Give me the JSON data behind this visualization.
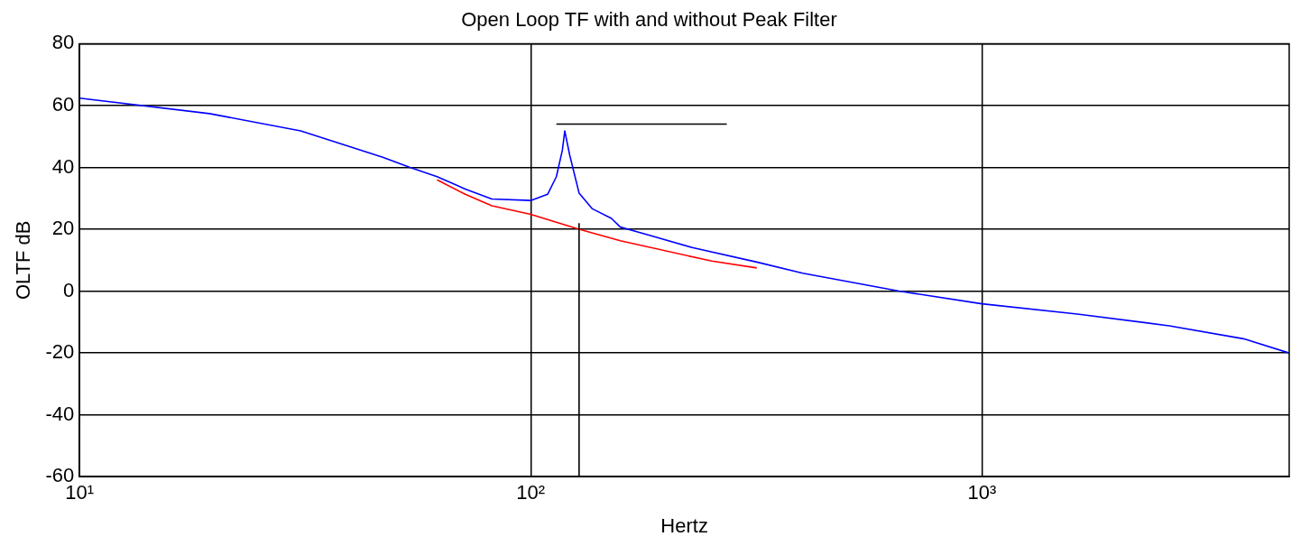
{
  "chart_data": {
    "type": "line",
    "title": "Open Loop TF with and without Peak Filter",
    "xlabel": "Hertz",
    "ylabel": "OLTF dB",
    "log": "x",
    "grid": true,
    "legend": false,
    "xlim": [
      10,
      4800
    ],
    "xticks": [
      {
        "value": 10,
        "label": "10¹"
      },
      {
        "value": 100,
        "label": "10²"
      },
      {
        "value": 1000,
        "label": "10³"
      }
    ],
    "ylim": [
      -60,
      80
    ],
    "yticks": [
      -60,
      -40,
      -20,
      0,
      20,
      40,
      60,
      80
    ],
    "series": [
      {
        "color": "#ff0000",
        "x": [
          62,
          71.6,
          82,
          100,
          128,
          158,
          252,
          317
        ],
        "values": [
          36,
          31.3,
          27.6,
          24.8,
          20,
          16.3,
          9.7,
          7.5
        ]
      },
      {
        "color": "#0000ff",
        "x": [
          10,
          19.4,
          30.9,
          47,
          54,
          62,
          71.6,
          82,
          100,
          109,
          114,
          117.5,
          119,
          122,
          128,
          137,
          151,
          158,
          182,
          229,
          317,
          401,
          655,
          1000,
          1628,
          2600,
          3800,
          4800
        ],
        "values": [
          62.4,
          57.4,
          51.8,
          43.3,
          40,
          37,
          33,
          29.8,
          29.3,
          31.3,
          37,
          45.5,
          51.8,
          44,
          31.7,
          26.6,
          23.5,
          20.7,
          18.2,
          14,
          9.4,
          5.8,
          0,
          -4.1,
          -7.4,
          -11.2,
          -15.4,
          -20
        ]
      },
      {
        "color": "#000000",
        "x": [
          114,
          272
        ],
        "values": [
          54,
          54
        ]
      },
      {
        "color": "#000000",
        "x": [
          128,
          128
        ],
        "values": [
          -60,
          22
        ]
      }
    ]
  }
}
